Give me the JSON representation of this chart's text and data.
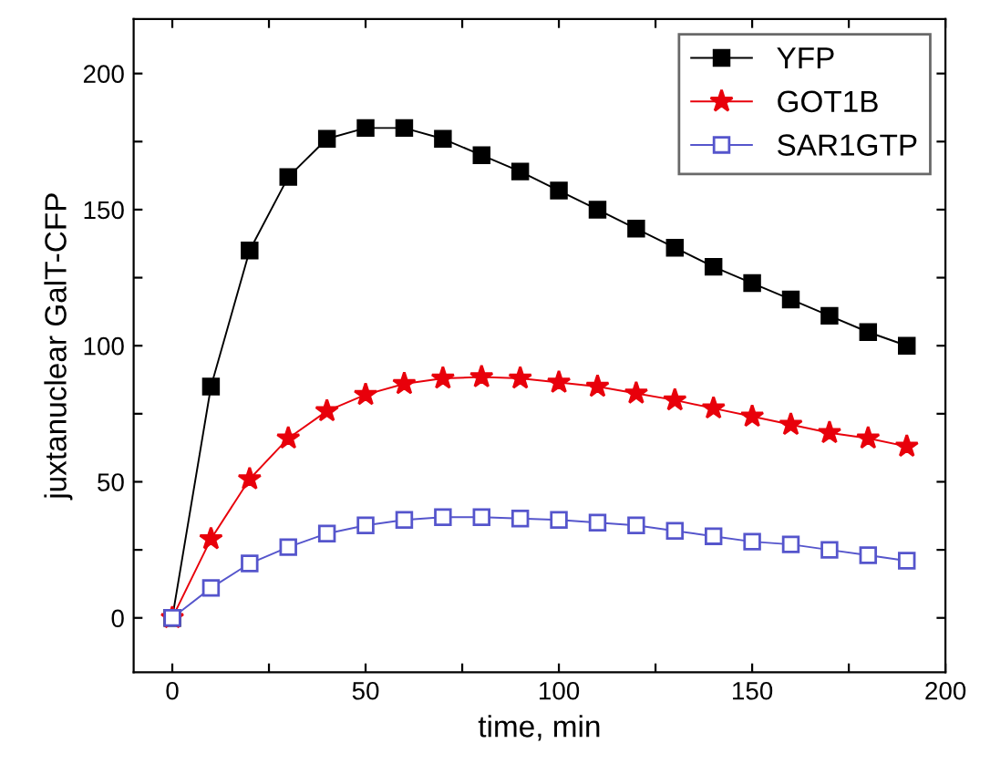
{
  "chart_data": {
    "type": "line",
    "xlabel": "time, min",
    "ylabel": "juxtanuclear GalT-CFP",
    "x": [
      0,
      10,
      20,
      30,
      40,
      50,
      60,
      70,
      80,
      90,
      100,
      110,
      120,
      130,
      140,
      150,
      160,
      170,
      180,
      190
    ],
    "series": [
      {
        "name": "YFP",
        "color": "#000000",
        "marker": "square",
        "values": [
          0,
          85,
          135,
          162,
          176,
          180,
          180,
          176,
          170,
          164,
          157,
          150,
          143,
          136,
          129,
          123,
          117,
          111,
          105,
          100
        ]
      },
      {
        "name": "GOT1B",
        "color": "#e8000b",
        "marker": "star",
        "values": [
          0,
          29,
          51,
          66,
          76,
          82,
          86,
          88,
          88.5,
          88,
          86.5,
          85,
          82.5,
          80,
          77,
          74,
          71,
          68,
          66,
          63
        ]
      },
      {
        "name": "SAR1GTP",
        "color": "#5555cc",
        "marker": "square",
        "values": [
          0,
          11,
          20,
          26,
          31,
          34,
          36,
          37,
          37,
          36.5,
          36,
          35,
          34,
          32,
          30,
          28,
          27,
          25,
          23,
          21
        ]
      }
    ],
    "xlim": [
      -10,
      200
    ],
    "ylim": [
      -20,
      220
    ],
    "xticks": [
      0,
      {
        "value": 25,
        "label": null
      },
      50,
      {
        "value": 75,
        "label": null
      },
      100,
      {
        "value": 125,
        "label": null
      },
      150,
      {
        "value": 175,
        "label": null
      },
      200
    ],
    "yticks": [
      0,
      {
        "value": 25,
        "label": null
      },
      50,
      {
        "value": 75,
        "label": null
      },
      100,
      {
        "value": 125,
        "label": null
      },
      150,
      {
        "value": 175,
        "label": null
      },
      200
    ],
    "legend": "top right",
    "grid": false,
    "line_style": "solid"
  }
}
